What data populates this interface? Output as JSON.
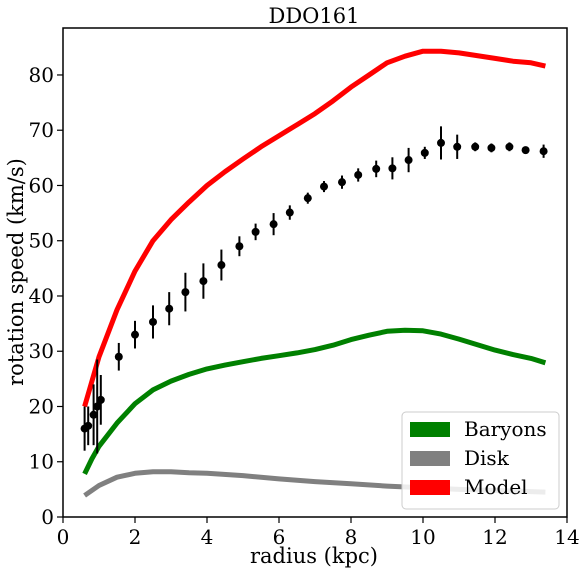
{
  "chart_data": {
    "type": "line",
    "title": "DDO161",
    "xlabel": "radius (kpc)",
    "ylabel": "rotation speed (km/s)",
    "xlim": [
      0,
      14
    ],
    "ylim": [
      0,
      88.5
    ],
    "xticks": [
      0,
      2,
      4,
      6,
      8,
      10,
      12,
      14
    ],
    "yticks": [
      0,
      10,
      20,
      30,
      40,
      50,
      60,
      70,
      80
    ],
    "grid": false,
    "legend_position": "lower right",
    "series": [
      {
        "name": "Baryons",
        "color": "#008000",
        "x": [
          0.6,
          0.8,
          1.0,
          1.5,
          2.0,
          2.5,
          3.0,
          3.5,
          4.0,
          4.5,
          5.0,
          5.5,
          6.0,
          6.5,
          7.0,
          7.5,
          8.0,
          8.5,
          9.0,
          9.5,
          10.0,
          10.5,
          11.0,
          11.5,
          12.0,
          12.5,
          13.0,
          13.4
        ],
        "values": [
          7.8,
          10.5,
          12.8,
          17.0,
          20.5,
          23.0,
          24.6,
          25.8,
          26.8,
          27.5,
          28.1,
          28.7,
          29.2,
          29.7,
          30.3,
          31.1,
          32.1,
          32.9,
          33.6,
          33.8,
          33.7,
          33.1,
          32.2,
          31.2,
          30.2,
          29.4,
          28.7,
          27.9
        ]
      },
      {
        "name": "Disk",
        "color": "#808080",
        "x": [
          0.6,
          1.0,
          1.5,
          2.0,
          2.5,
          3.0,
          3.5,
          4.0,
          5.0,
          6.0,
          7.0,
          8.0,
          9.0,
          10.0,
          11.0,
          12.0,
          13.0,
          13.4
        ],
        "values": [
          3.9,
          5.7,
          7.2,
          7.9,
          8.2,
          8.2,
          8.0,
          7.9,
          7.5,
          6.9,
          6.4,
          6.0,
          5.6,
          5.3,
          5.0,
          4.8,
          4.6,
          4.5
        ]
      },
      {
        "name": "Model",
        "color": "#ff0000",
        "x": [
          0.6,
          1.0,
          1.5,
          2.0,
          2.5,
          3.0,
          3.5,
          4.0,
          4.5,
          5.0,
          5.5,
          6.0,
          6.5,
          7.0,
          7.5,
          8.0,
          8.5,
          9.0,
          9.5,
          10.0,
          10.5,
          11.0,
          11.5,
          12.0,
          12.5,
          13.0,
          13.4
        ],
        "values": [
          20.0,
          29.0,
          37.5,
          44.5,
          50.0,
          53.8,
          57.0,
          60.0,
          62.5,
          64.8,
          67.0,
          69.0,
          71.0,
          73.0,
          75.3,
          77.8,
          80.0,
          82.2,
          83.4,
          84.3,
          84.3,
          84.0,
          83.5,
          83.0,
          82.5,
          82.2,
          81.6
        ]
      }
    ],
    "observed": {
      "x": [
        0.6,
        0.7,
        0.85,
        0.95,
        1.05,
        1.55,
        2.0,
        2.5,
        2.95,
        3.4,
        3.9,
        4.4,
        4.9,
        5.35,
        5.85,
        6.3,
        6.8,
        7.25,
        7.75,
        8.2,
        8.7,
        9.15,
        9.6,
        10.05,
        10.5,
        10.95,
        11.45,
        11.9,
        12.4,
        12.85,
        13.35
      ],
      "values": [
        16.0,
        16.5,
        18.5,
        20.0,
        21.2,
        29.0,
        33.0,
        35.3,
        37.7,
        40.7,
        42.7,
        45.6,
        49.0,
        51.6,
        53.0,
        55.1,
        57.7,
        59.8,
        60.6,
        61.9,
        63.0,
        63.1,
        64.6,
        65.9,
        67.7,
        67.0,
        67.0,
        66.8,
        67.0,
        66.4,
        66.2
      ],
      "errors": [
        4.0,
        3.5,
        5.5,
        8.5,
        4.5,
        2.5,
        2.5,
        3.0,
        3.0,
        3.5,
        3.2,
        2.8,
        1.8,
        1.5,
        2.0,
        1.3,
        1.0,
        1.0,
        1.2,
        1.2,
        1.5,
        2.0,
        2.2,
        1.1,
        3.0,
        2.2,
        0.8,
        0.8,
        0.8,
        0.6,
        1.2
      ]
    }
  }
}
